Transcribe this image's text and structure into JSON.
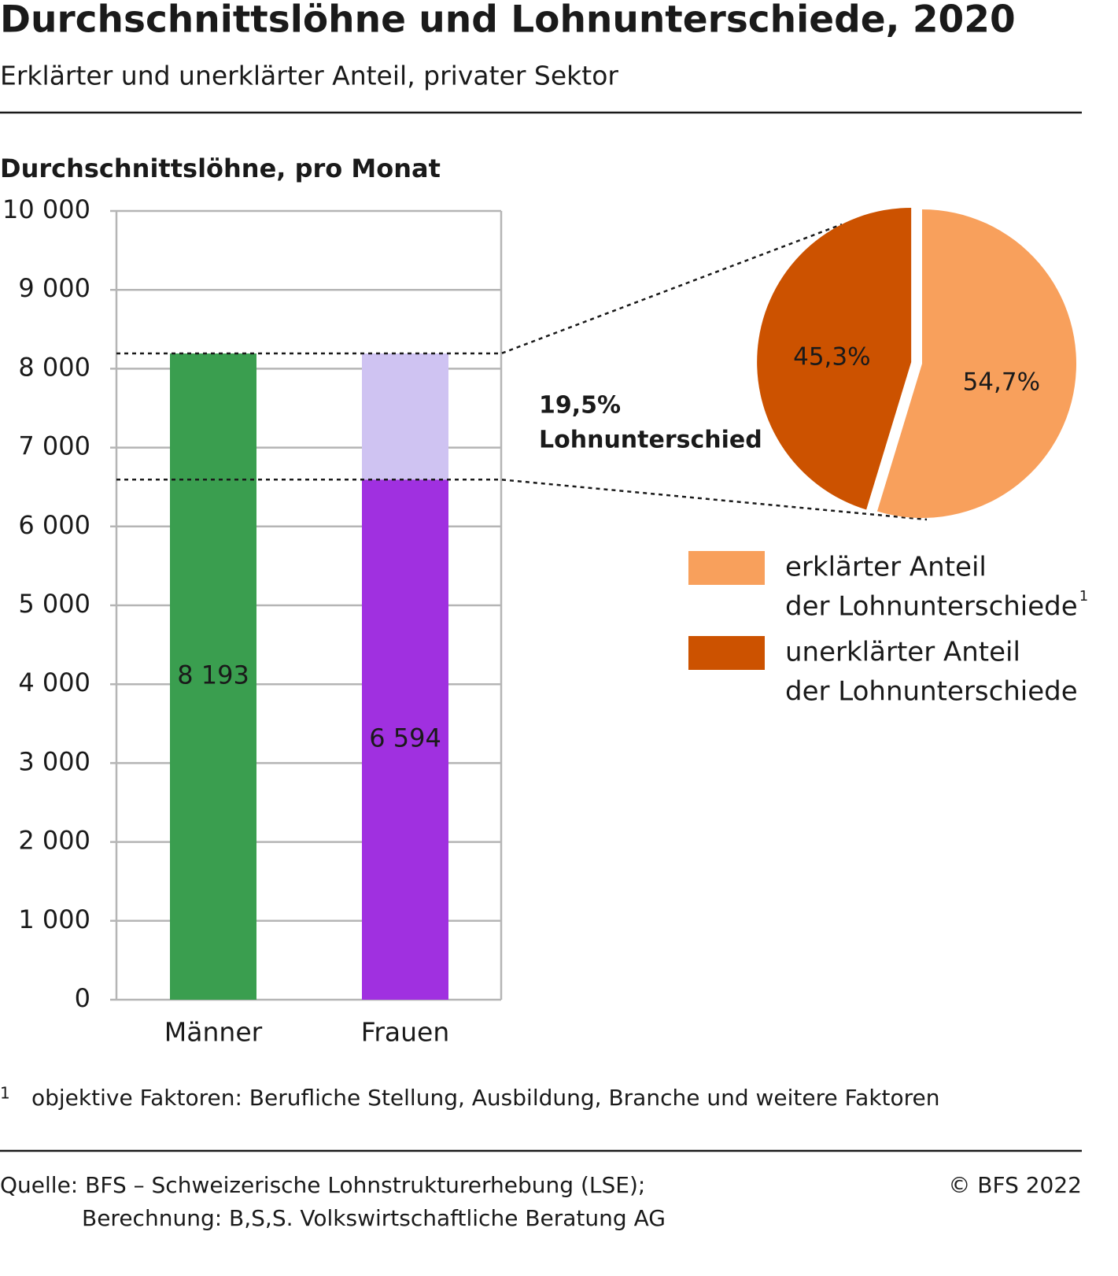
{
  "header": {
    "title": "Durchschnittslöhne und Lohnunterschiede, 2020",
    "subtitle": "Erklärter und unerklärter Anteil, privater Sektor"
  },
  "chart_data": [
    {
      "type": "bar",
      "y_label": "Durchschnittslöhne, pro Monat",
      "categories": [
        "Männer",
        "Frauen"
      ],
      "series": [
        {
          "colors": [
            "#3a9e4f",
            "#a030e0"
          ],
          "values": [
            8193,
            6594
          ],
          "value_labels": [
            "8 193",
            "6 594"
          ],
          "value_label_colors": [
            "#1a1a1a",
            "#ffffff"
          ]
        },
        {
          "color": "#cfc3f2",
          "values": [
            null,
            1599
          ]
        }
      ],
      "ylim": [
        0,
        10000
      ],
      "yticks": [
        0,
        {
          "value": 1000,
          "label": "1 000"
        },
        {
          "value": 2000,
          "label": "2 000"
        },
        {
          "value": 3000,
          "label": "3 000"
        },
        {
          "value": 4000,
          "label": "4 000"
        },
        {
          "value": 5000,
          "label": "5 000"
        },
        {
          "value": 6000,
          "label": "6 000"
        },
        {
          "value": 7000,
          "label": "7 000"
        },
        {
          "value": 8000,
          "label": "8 000"
        },
        {
          "value": 9000,
          "label": "9 000"
        },
        {
          "value": 10000,
          "label": "10 000"
        }
      ],
      "grid": true,
      "annotation": [
        "19,5%",
        "Lohnunterschied"
      ]
    },
    {
      "type": "pie",
      "categories": [
        [
          "erklärter Anteil",
          "der Lohnunterschiede"
        ],
        [
          "unerklärter Anteil",
          "der Lohnunterschiede"
        ]
      ],
      "legend_note": "1",
      "values": [
        54.7,
        45.3
      ],
      "value_labels": [
        "54,7%",
        "45,3%"
      ],
      "colors": [
        "#f8a05c",
        "#cc5200"
      ],
      "value_label_colors": [
        "#1a1a1a",
        "#ffffff"
      ]
    }
  ],
  "footnote": {
    "marker": "1",
    "text": "objektive Faktoren: Berufliche Stellung, Ausbildung, Branche und weitere Faktoren"
  },
  "footer": {
    "source": [
      "Quelle: BFS – Schweizerische Lohnstrukturerhebung (LSE);",
      "Berechnung:  B,S,S. Volkswirtschaftliche Beratung AG"
    ],
    "copyright": "© BFS 2022"
  }
}
